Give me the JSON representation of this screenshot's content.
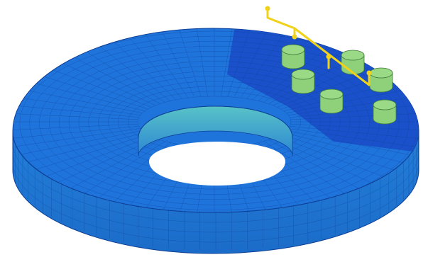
{
  "figure": {
    "title": "",
    "background": "#ffffff"
  },
  "colors": {
    "mesh_top": "#1f6fdc",
    "mesh_side": "#1f78d8",
    "mesh_dense": "#1a4fc8",
    "inner_wall_top": "#4fb7cc",
    "inner_wall_bottom": "#2f8fd6",
    "cylinder": "#8fd07a",
    "cylinder_top": "#9ad986",
    "probe": "#f0d21a",
    "mesh_line": "#0d3f96"
  },
  "components": {
    "disc": "annular-mesh-disc",
    "dense_region": "refined-mesh-sector",
    "cylinders_count": 6,
    "probe": "yellow-sensor-rig"
  }
}
